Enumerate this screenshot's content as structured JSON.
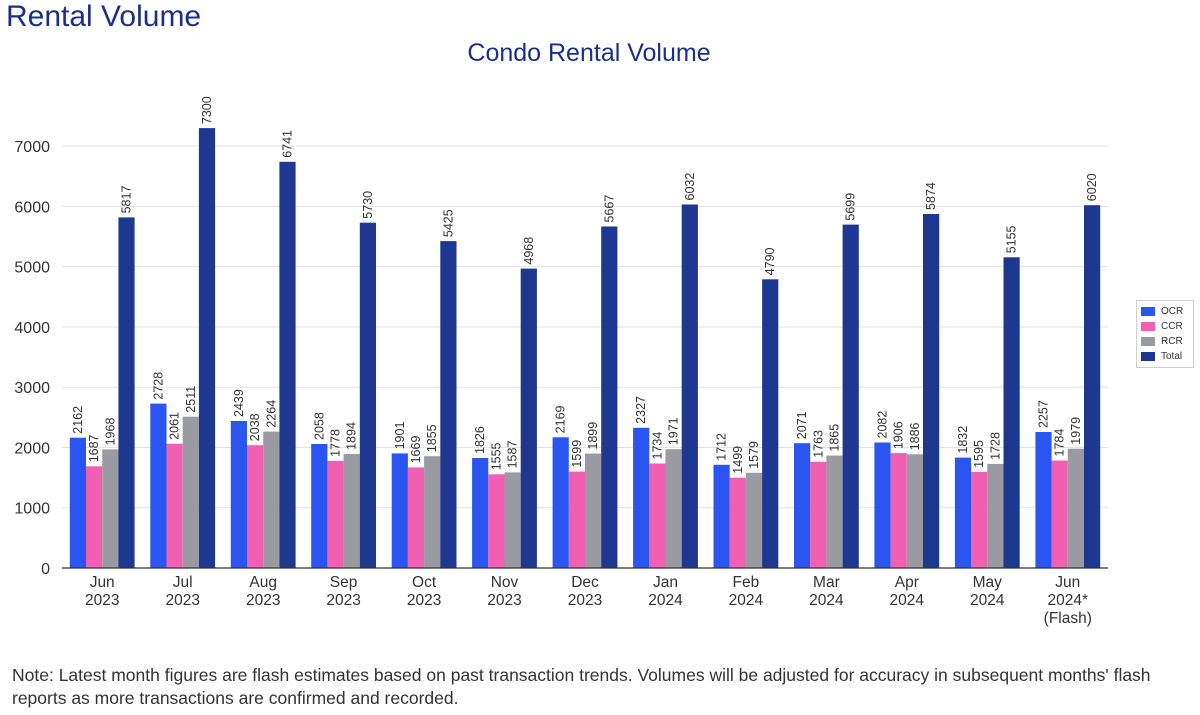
{
  "page_heading": "Rental Volume",
  "note": "Note: Latest month figures are flash estimates based on past transaction trends. Volumes will be adjusted for accuracy in subsequent months' flash reports as more transactions are confirmed and recorded.",
  "colors": {
    "OCR": "#2a55f0",
    "CCR": "#f05fb2",
    "RCR": "#9a9aa2",
    "Total": "#1e3791",
    "title": "#1b2f8a"
  },
  "chart_data": {
    "type": "bar",
    "title": "Condo Rental Volume",
    "xlabel": "",
    "ylabel": "",
    "ylim": [
      0,
      7600
    ],
    "yticks": [
      0,
      1000,
      2000,
      3000,
      4000,
      5000,
      6000,
      7000
    ],
    "grid": true,
    "legend_position": "right",
    "categories": [
      [
        "Jun",
        "2023"
      ],
      [
        "Jul",
        "2023"
      ],
      [
        "Aug",
        "2023"
      ],
      [
        "Sep",
        "2023"
      ],
      [
        "Oct",
        "2023"
      ],
      [
        "Nov",
        "2023"
      ],
      [
        "Dec",
        "2023"
      ],
      [
        "Jan",
        "2024"
      ],
      [
        "Feb",
        "2024"
      ],
      [
        "Mar",
        "2024"
      ],
      [
        "Apr",
        "2024"
      ],
      [
        "May",
        "2024"
      ],
      [
        "Jun",
        "2024*",
        "(Flash)"
      ]
    ],
    "series": [
      {
        "name": "OCR",
        "values": [
          2162,
          2728,
          2439,
          2058,
          1901,
          1826,
          2169,
          2327,
          1712,
          2071,
          2082,
          1832,
          2257
        ]
      },
      {
        "name": "CCR",
        "values": [
          1687,
          2061,
          2038,
          1778,
          1669,
          1555,
          1599,
          1734,
          1499,
          1763,
          1906,
          1595,
          1784
        ]
      },
      {
        "name": "RCR",
        "values": [
          1968,
          2511,
          2264,
          1894,
          1855,
          1587,
          1899,
          1971,
          1579,
          1865,
          1886,
          1728,
          1979
        ]
      },
      {
        "name": "Total",
        "values": [
          5817,
          7300,
          6741,
          5730,
          5425,
          4968,
          5667,
          6032,
          4790,
          5699,
          5874,
          5155,
          6020
        ]
      }
    ]
  }
}
